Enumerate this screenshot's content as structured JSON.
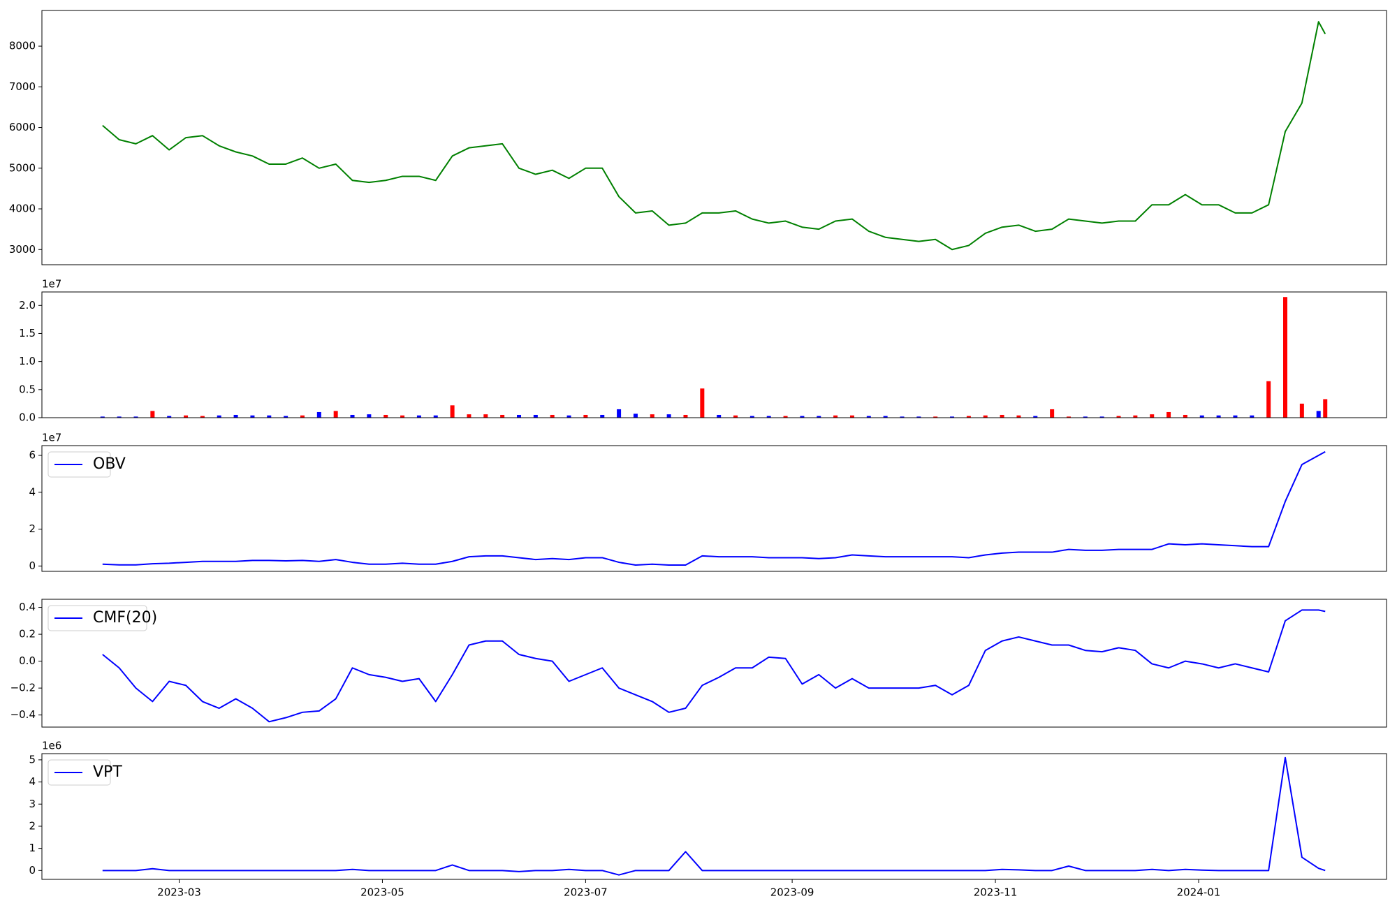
{
  "chart_data": [
    {
      "type": "line",
      "x": [
        19394,
        19399,
        19404,
        19409,
        19414,
        19419,
        19424,
        19429,
        19434,
        19439,
        19444,
        19449,
        19454,
        19459,
        19464,
        19469,
        19474,
        19479,
        19484,
        19489,
        19494,
        19499,
        19504,
        19509,
        19514,
        19519,
        19524,
        19529,
        19534,
        19539,
        19544,
        19549,
        19554,
        19559,
        19564,
        19569,
        19574,
        19579,
        19584,
        19589,
        19594,
        19599,
        19604,
        19609,
        19614,
        19619,
        19624,
        19629,
        19634,
        19639,
        19644,
        19649,
        19654,
        19659,
        19664,
        19669,
        19674,
        19679,
        19684,
        19689,
        19694,
        19699,
        19704,
        19709,
        19714,
        19719,
        19724,
        19729,
        19734,
        19739,
        19744,
        19749,
        19754,
        19759,
        19761
      ],
      "series": [
        {
          "color": "#008000",
          "values": [
            6050,
            5700,
            5600,
            5800,
            5450,
            5750,
            5800,
            5550,
            5400,
            5300,
            5100,
            5100,
            5250,
            5000,
            5100,
            4700,
            4650,
            4700,
            4800,
            4800,
            4700,
            5300,
            5500,
            5550,
            5600,
            5000,
            4850,
            4950,
            4750,
            5000,
            5000,
            4300,
            3900,
            3950,
            3600,
            3650,
            3900,
            3900,
            3950,
            3750,
            3650,
            3700,
            3550,
            3500,
            3700,
            3750,
            3450,
            3300,
            3250,
            3200,
            3250,
            3000,
            3100,
            3400,
            3550,
            3600,
            3450,
            3500,
            3750,
            3700,
            3650,
            3700,
            3700,
            4100,
            4100,
            4350,
            4100,
            4100,
            3900,
            3900,
            4100,
            5900,
            6600,
            8600,
            8300
          ]
        }
      ],
      "xlim": [
        19375.8,
        19779.4
      ],
      "ylim": [
        2627,
        8877
      ],
      "yticks": [
        3000,
        4000,
        5000,
        6000,
        7000,
        8000
      ]
    },
    {
      "type": "bar",
      "offset_text": "1e7",
      "x": [
        19394,
        19399,
        19404,
        19409,
        19414,
        19419,
        19424,
        19429,
        19434,
        19439,
        19444,
        19449,
        19454,
        19459,
        19464,
        19469,
        19474,
        19479,
        19484,
        19489,
        19494,
        19499,
        19504,
        19509,
        19514,
        19519,
        19524,
        19529,
        19534,
        19539,
        19544,
        19549,
        19554,
        19559,
        19564,
        19569,
        19574,
        19579,
        19584,
        19589,
        19594,
        19599,
        19604,
        19609,
        19614,
        19619,
        19624,
        19629,
        19634,
        19639,
        19644,
        19649,
        19654,
        19659,
        19664,
        19669,
        19674,
        19679,
        19684,
        19689,
        19694,
        19699,
        19704,
        19709,
        19714,
        19719,
        19724,
        19729,
        19734,
        19739,
        19744,
        19749,
        19754,
        19759,
        19761
      ],
      "values": [
        0.02,
        0.02,
        0.02,
        0.12,
        0.03,
        0.04,
        0.03,
        0.04,
        0.05,
        0.04,
        0.04,
        0.03,
        0.04,
        0.1,
        0.12,
        0.05,
        0.06,
        0.05,
        0.04,
        0.04,
        0.04,
        0.22,
        0.06,
        0.06,
        0.05,
        0.05,
        0.05,
        0.05,
        0.04,
        0.05,
        0.05,
        0.15,
        0.07,
        0.06,
        0.06,
        0.05,
        0.52,
        0.05,
        0.04,
        0.03,
        0.03,
        0.03,
        0.03,
        0.03,
        0.04,
        0.04,
        0.03,
        0.03,
        0.02,
        0.02,
        0.02,
        0.02,
        0.03,
        0.04,
        0.05,
        0.04,
        0.03,
        0.15,
        0.02,
        0.02,
        0.02,
        0.03,
        0.04,
        0.06,
        0.1,
        0.05,
        0.04,
        0.04,
        0.04,
        0.04,
        0.65,
        2.15,
        0.25,
        0.12,
        0.33
      ],
      "colors": [
        "#0000ff",
        "#0000ff",
        "#0000ff",
        "#ff0000",
        "#0000ff",
        "#ff0000",
        "#ff0000",
        "#0000ff",
        "#0000ff",
        "#0000ff",
        "#0000ff",
        "#0000ff",
        "#ff0000",
        "#0000ff",
        "#ff0000",
        "#0000ff",
        "#0000ff",
        "#ff0000",
        "#ff0000",
        "#0000ff",
        "#0000ff",
        "#ff0000",
        "#ff0000",
        "#ff0000",
        "#ff0000",
        "#0000ff",
        "#0000ff",
        "#ff0000",
        "#0000ff",
        "#ff0000",
        "#0000ff",
        "#0000ff",
        "#0000ff",
        "#ff0000",
        "#0000ff",
        "#ff0000",
        "#ff0000",
        "#0000ff",
        "#ff0000",
        "#0000ff",
        "#0000ff",
        "#ff0000",
        "#0000ff",
        "#0000ff",
        "#ff0000",
        "#ff0000",
        "#0000ff",
        "#0000ff",
        "#0000ff",
        "#0000ff",
        "#ff0000",
        "#0000ff",
        "#ff0000",
        "#ff0000",
        "#ff0000",
        "#ff0000",
        "#0000ff",
        "#ff0000",
        "#ff0000",
        "#0000ff",
        "#0000ff",
        "#ff0000",
        "#ff0000",
        "#ff0000",
        "#ff0000",
        "#ff0000",
        "#0000ff",
        "#0000ff",
        "#0000ff",
        "#0000ff",
        "#ff0000",
        "#ff0000",
        "#ff0000",
        "#0000ff",
        "#ff0000"
      ],
      "xlim": [
        19375.8,
        19779.4
      ],
      "ylim": [
        0,
        2.24
      ],
      "yticks": [
        {
          "value": 0,
          "label": "0.0"
        },
        0.5,
        {
          "value": 1,
          "label": "1.0"
        },
        1.5,
        {
          "value": 2,
          "label": "2.0"
        }
      ]
    },
    {
      "type": "line",
      "offset_text": "1e7",
      "legend": "upper left",
      "x": [
        19394,
        19399,
        19404,
        19409,
        19414,
        19419,
        19424,
        19429,
        19434,
        19439,
        19444,
        19449,
        19454,
        19459,
        19464,
        19469,
        19474,
        19479,
        19484,
        19489,
        19494,
        19499,
        19504,
        19509,
        19514,
        19519,
        19524,
        19529,
        19534,
        19539,
        19544,
        19549,
        19554,
        19559,
        19564,
        19569,
        19574,
        19579,
        19584,
        19589,
        19594,
        19599,
        19604,
        19609,
        19614,
        19619,
        19624,
        19629,
        19634,
        19639,
        19644,
        19649,
        19654,
        19659,
        19664,
        19669,
        19674,
        19679,
        19684,
        19689,
        19694,
        19699,
        19704,
        19709,
        19714,
        19719,
        19724,
        19729,
        19734,
        19739,
        19744,
        19749,
        19754,
        19759,
        19761
      ],
      "series": [
        {
          "name": "OBV",
          "color": "#0000ff",
          "values": [
            0.1,
            0.06,
            0.06,
            0.12,
            0.15,
            0.2,
            0.25,
            0.25,
            0.25,
            0.3,
            0.3,
            0.28,
            0.3,
            0.25,
            0.35,
            0.2,
            0.1,
            0.1,
            0.15,
            0.1,
            0.1,
            0.25,
            0.5,
            0.55,
            0.55,
            0.45,
            0.35,
            0.4,
            0.35,
            0.45,
            0.45,
            0.2,
            0.05,
            0.1,
            0.05,
            0.05,
            0.55,
            0.5,
            0.5,
            0.5,
            0.45,
            0.45,
            0.45,
            0.4,
            0.45,
            0.6,
            0.55,
            0.5,
            0.5,
            0.5,
            0.5,
            0.5,
            0.45,
            0.6,
            0.7,
            0.75,
            0.75,
            0.75,
            0.9,
            0.85,
            0.85,
            0.9,
            0.9,
            0.9,
            1.2,
            1.15,
            1.2,
            1.15,
            1.1,
            1.05,
            1.05,
            3.5,
            5.5,
            6.0,
            6.2
          ]
        }
      ],
      "xlim": [
        19375.8,
        19779.4
      ],
      "ylim": [
        -0.29,
        6.53
      ],
      "yticks": [
        0,
        2,
        4,
        6
      ]
    },
    {
      "type": "line",
      "legend": "upper left",
      "x": [
        19394,
        19399,
        19404,
        19409,
        19414,
        19419,
        19424,
        19429,
        19434,
        19439,
        19444,
        19449,
        19454,
        19459,
        19464,
        19469,
        19474,
        19479,
        19484,
        19489,
        19494,
        19499,
        19504,
        19509,
        19514,
        19519,
        19524,
        19529,
        19534,
        19539,
        19544,
        19549,
        19554,
        19559,
        19564,
        19569,
        19574,
        19579,
        19584,
        19589,
        19594,
        19599,
        19604,
        19609,
        19614,
        19619,
        19624,
        19629,
        19634,
        19639,
        19644,
        19649,
        19654,
        19659,
        19664,
        19669,
        19674,
        19679,
        19684,
        19689,
        19694,
        19699,
        19704,
        19709,
        19714,
        19719,
        19724,
        19729,
        19734,
        19739,
        19744,
        19749,
        19754,
        19759,
        19761
      ],
      "series": [
        {
          "name": "CMF(20)",
          "color": "#0000ff",
          "values": [
            0.05,
            -0.05,
            -0.2,
            -0.3,
            -0.15,
            -0.18,
            -0.3,
            -0.35,
            -0.28,
            -0.35,
            -0.45,
            -0.42,
            -0.38,
            -0.37,
            -0.28,
            -0.05,
            -0.1,
            -0.12,
            -0.15,
            -0.13,
            -0.3,
            -0.1,
            0.12,
            0.15,
            0.15,
            0.05,
            0.02,
            0.0,
            -0.15,
            -0.1,
            -0.05,
            -0.2,
            -0.25,
            -0.3,
            -0.38,
            -0.35,
            -0.18,
            -0.12,
            -0.05,
            -0.05,
            0.03,
            0.02,
            -0.17,
            -0.1,
            -0.2,
            -0.13,
            -0.2,
            -0.2,
            -0.2,
            -0.2,
            -0.18,
            -0.25,
            -0.18,
            0.08,
            0.15,
            0.18,
            0.15,
            0.12,
            0.12,
            0.08,
            0.07,
            0.1,
            0.08,
            -0.02,
            -0.05,
            0.0,
            -0.02,
            -0.05,
            -0.02,
            -0.05,
            -0.08,
            0.3,
            0.38,
            0.38,
            0.37
          ]
        }
      ],
      "xlim": [
        19375.8,
        19779.4
      ],
      "ylim": [
        -0.49,
        0.46
      ],
      "yticks": [
        {
          "value": -0.4,
          "label": "−0.4"
        },
        {
          "value": -0.2,
          "label": "−0.2"
        },
        {
          "value": 0,
          "label": "0.0"
        },
        0.2,
        0.4
      ]
    },
    {
      "type": "line",
      "offset_text": "1e6",
      "legend": "upper left",
      "x": [
        19394,
        19399,
        19404,
        19409,
        19414,
        19419,
        19424,
        19429,
        19434,
        19439,
        19444,
        19449,
        19454,
        19459,
        19464,
        19469,
        19474,
        19479,
        19484,
        19489,
        19494,
        19499,
        19504,
        19509,
        19514,
        19519,
        19524,
        19529,
        19534,
        19539,
        19544,
        19549,
        19554,
        19559,
        19564,
        19569,
        19574,
        19579,
        19584,
        19589,
        19594,
        19599,
        19604,
        19609,
        19614,
        19619,
        19624,
        19629,
        19634,
        19639,
        19644,
        19649,
        19654,
        19659,
        19664,
        19669,
        19674,
        19679,
        19684,
        19689,
        19694,
        19699,
        19704,
        19709,
        19714,
        19719,
        19724,
        19729,
        19734,
        19739,
        19744,
        19749,
        19754,
        19759,
        19761
      ],
      "series": [
        {
          "name": "VPT",
          "color": "#0000ff",
          "values": [
            0,
            0,
            0,
            0.08,
            0,
            0,
            0,
            0,
            0,
            0,
            0,
            0,
            0,
            0,
            0,
            0.05,
            0,
            0,
            0,
            0,
            0,
            0.25,
            0,
            0,
            0,
            -0.05,
            0,
            0,
            0.05,
            0,
            0,
            -0.2,
            0,
            0,
            0,
            0.85,
            0,
            0,
            0,
            0,
            0,
            0,
            0,
            0,
            0,
            0,
            0,
            0,
            0,
            0,
            0,
            0,
            0,
            0,
            0.05,
            0.03,
            0,
            0,
            0.2,
            0,
            0,
            0,
            0,
            0.05,
            0,
            0.05,
            0.02,
            0,
            0,
            0,
            0,
            5.1,
            0.6,
            0.1,
            0
          ]
        }
      ],
      "xlim": [
        19375.8,
        19779.4
      ],
      "ylim": [
        -0.4,
        5.28
      ],
      "yticks": [
        0,
        1,
        2,
        3,
        4,
        5
      ],
      "xticks": [
        {
          "value": 19417,
          "label": "2023-03"
        },
        {
          "value": 19478,
          "label": "2023-05"
        },
        {
          "value": 19539,
          "label": "2023-07"
        },
        {
          "value": 19601,
          "label": "2023-09"
        },
        {
          "value": 19662,
          "label": "2023-11"
        },
        {
          "value": 19723,
          "label": "2024-01"
        }
      ]
    }
  ]
}
